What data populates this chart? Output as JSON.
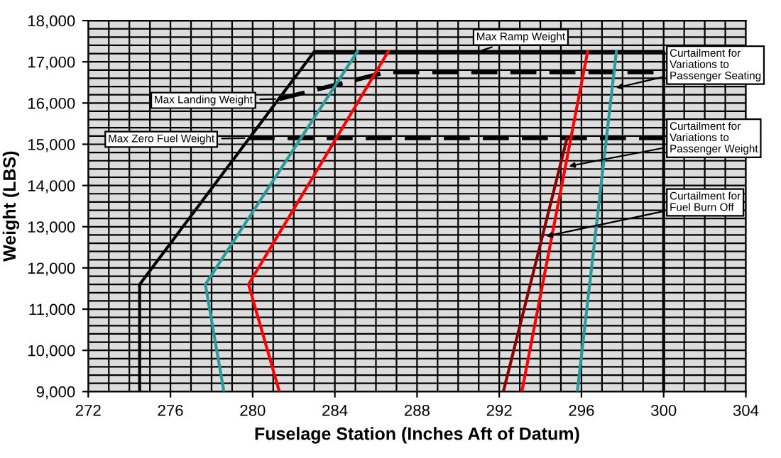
{
  "chart_data": {
    "type": "line",
    "xlabel": "Fuselage Station (Inches Aft of Datum)",
    "ylabel": "Weight (LBS)",
    "xlim": [
      272,
      304
    ],
    "xticks": [
      272,
      276,
      280,
      284,
      288,
      292,
      296,
      300,
      304
    ],
    "ylim": [
      9000,
      18000
    ],
    "yticks": [
      {
        "value": 9000,
        "label": "9,000"
      },
      {
        "value": 10000,
        "label": "10,000"
      },
      {
        "value": 11000,
        "label": "11,000"
      },
      {
        "value": 12000,
        "label": "12,000"
      },
      {
        "value": 13000,
        "label": "13,000"
      },
      {
        "value": 14000,
        "label": "14,000"
      },
      {
        "value": 15000,
        "label": "15,000"
      },
      {
        "value": 16000,
        "label": "16,000"
      },
      {
        "value": 17000,
        "label": "17,000"
      },
      {
        "value": 18000,
        "label": "18,000"
      }
    ],
    "grid": true,
    "legend": false,
    "series": [
      {
        "color": "#000000",
        "x": [
          274.5,
          274.5,
          283,
          300,
          300
        ],
        "values": [
          9000,
          11600,
          17250,
          17250,
          9000
        ]
      },
      {
        "color": "#000000",
        "line_style": "dashed",
        "x": [
          281.3,
          286.5,
          300
        ],
        "values": [
          16100,
          16750,
          16750
        ]
      },
      {
        "color": "#000000",
        "line_style": "dashed",
        "x": [
          279.8,
          300
        ],
        "values": [
          15150,
          15150
        ]
      },
      {
        "color": "#2a9a9a",
        "x": [
          278.6,
          277.7,
          285.1
        ],
        "values": [
          9000,
          11600,
          17250
        ]
      },
      {
        "color": "#ff0000",
        "x": [
          281.3,
          279.8,
          286.6
        ],
        "values": [
          9000,
          11600,
          17250
        ]
      },
      {
        "color": "#2a9a9a",
        "x": [
          295.8,
          297.7
        ],
        "values": [
          9000,
          17250
        ]
      },
      {
        "color": "#ff0000",
        "x": [
          293.1,
          296.3
        ],
        "values": [
          9000,
          17250
        ]
      },
      {
        "color": "#8b0000",
        "x": [
          292.2,
          295.3
        ],
        "values": [
          9000,
          15150
        ]
      }
    ],
    "annotations": [
      {
        "text": "Max Ramp Weight",
        "x": 291,
        "y": 17250
      },
      {
        "text": "Max Landing Weight",
        "x": 281.3,
        "y": 16100
      },
      {
        "text": "Max Zero Fuel Weight",
        "x": 279.8,
        "y": 15150
      },
      {
        "text": "Curtailment for\nVariations to\nPassenger Seating",
        "x": 297.5,
        "y": 16350
      },
      {
        "text": "Curtailment for\nVariations to\nPassenger Weight",
        "x": 295.2,
        "y": 14450
      },
      {
        "text": "Curtailment for\nFuel Burn Off",
        "x": 294.1,
        "y": 12750
      }
    ]
  }
}
